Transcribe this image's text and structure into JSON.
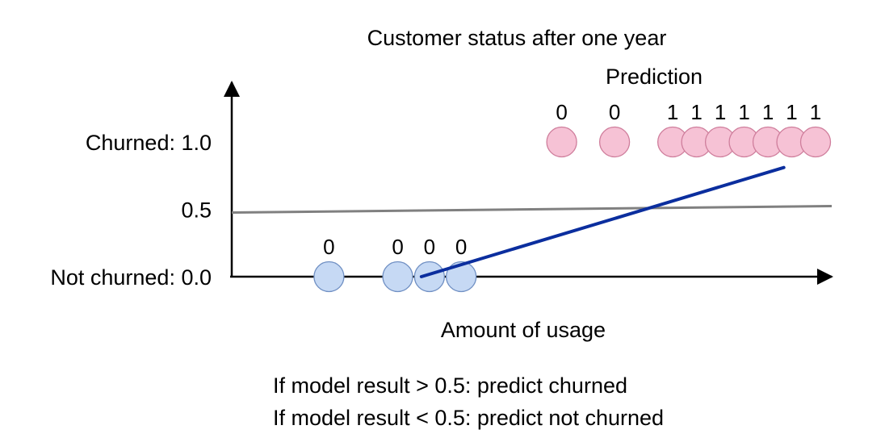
{
  "chart_data": {
    "type": "scatter",
    "title": "Customer status after one year",
    "xlabel": "Amount of usage",
    "prediction_heading": "Prediction",
    "y_tick_labels": [
      {
        "value": 1.0,
        "label": "Churned: 1.0"
      },
      {
        "value": 0.5,
        "label": "0.5"
      },
      {
        "value": 0.0,
        "label": "Not churned: 0.0"
      }
    ],
    "ylim": [
      0,
      1
    ],
    "xlim": [
      0,
      10
    ],
    "threshold": 0.5,
    "threshold_line_color": "#808080",
    "series": [
      {
        "color": "#c6d9f4",
        "stroke": "#6f8fc3",
        "points": [
          {
            "x": 0.8,
            "y": 0,
            "prediction": "0"
          },
          {
            "x": 2.1,
            "y": 0,
            "prediction": "0"
          },
          {
            "x": 2.7,
            "y": 0,
            "prediction": "0"
          },
          {
            "x": 3.3,
            "y": 0,
            "prediction": "0"
          }
        ]
      },
      {
        "color": "#f6c2d5",
        "stroke": "#cf7e9c",
        "points": [
          {
            "x": 5.2,
            "y": 1,
            "prediction": "0"
          },
          {
            "x": 6.2,
            "y": 1,
            "prediction": "0"
          },
          {
            "x": 7.3,
            "y": 1,
            "prediction": "1"
          },
          {
            "x": 7.75,
            "y": 1,
            "prediction": "1"
          },
          {
            "x": 8.2,
            "y": 1,
            "prediction": "1"
          },
          {
            "x": 8.65,
            "y": 1,
            "prediction": "1"
          },
          {
            "x": 9.1,
            "y": 1,
            "prediction": "1"
          },
          {
            "x": 9.55,
            "y": 1,
            "prediction": "1"
          },
          {
            "x": 10.0,
            "y": 1,
            "prediction": "1"
          }
        ]
      }
    ],
    "model_line": {
      "color": "#0b2e9e",
      "points": [
        [
          2.7,
          0.0
        ],
        [
          9.4,
          0.9
        ]
      ]
    }
  },
  "rules": [
    "If model result > 0.5: predict churned",
    "If model result < 0.5: predict not churned"
  ]
}
